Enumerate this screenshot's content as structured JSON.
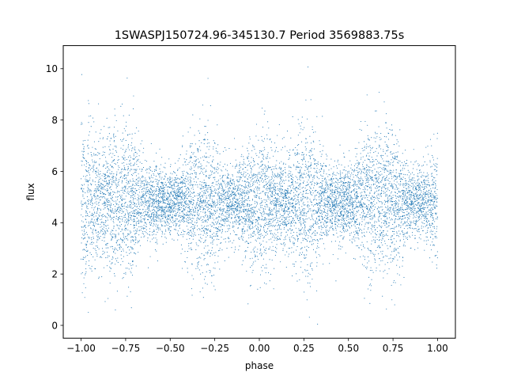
{
  "chart_data": {
    "type": "scatter",
    "title": "1SWASPJ150724.96-345130.7 Period 3569883.75s",
    "xlabel": "phase",
    "ylabel": "flux",
    "xlim": [
      -1.1,
      1.1
    ],
    "ylim": [
      -0.5,
      10.9
    ],
    "xticks": [
      -1.0,
      -0.75,
      -0.5,
      -0.25,
      0.0,
      0.25,
      0.5,
      0.75,
      1.0
    ],
    "xtick_labels": [
      "−1.00",
      "−0.75",
      "−0.50",
      "−0.25",
      "0.00",
      "0.25",
      "0.50",
      "0.75",
      "1.00"
    ],
    "yticks": [
      0,
      2,
      4,
      6,
      8,
      10
    ],
    "ytick_labels": [
      "0",
      "2",
      "4",
      "6",
      "8",
      "10"
    ],
    "grid": false,
    "marker_color": "#1f77b4",
    "series": [
      {
        "baseline_flux": 4.8,
        "flux_min": 0.0,
        "flux_max": 10.4,
        "spread_profile": {
          "phase": [
            -1.0,
            -0.95,
            -0.9,
            -0.85,
            -0.8,
            -0.75,
            -0.7,
            -0.65,
            -0.6,
            -0.55,
            -0.5,
            -0.45,
            -0.4,
            -0.35,
            -0.3,
            -0.25,
            -0.2,
            -0.15,
            -0.1,
            -0.05,
            0.0,
            0.05,
            0.1,
            0.15,
            0.2,
            0.25,
            0.3,
            0.35,
            0.4,
            0.45,
            0.5,
            0.55,
            0.6,
            0.65,
            0.7,
            0.75,
            0.8,
            0.85,
            0.9,
            0.95,
            1.0
          ],
          "flux_sd": [
            1.8,
            1.5,
            1.1,
            1.3,
            1.4,
            1.5,
            1.3,
            0.8,
            0.7,
            0.7,
            0.6,
            0.7,
            1.0,
            1.4,
            1.3,
            1.2,
            0.8,
            0.6,
            0.9,
            1.2,
            1.3,
            1.2,
            0.9,
            0.9,
            1.1,
            1.5,
            1.4,
            0.9,
            0.7,
            0.8,
            0.7,
            0.9,
            1.3,
            1.5,
            1.4,
            1.3,
            1.0,
            0.6,
            0.7,
            0.8,
            1.2
          ]
        }
      }
    ]
  }
}
